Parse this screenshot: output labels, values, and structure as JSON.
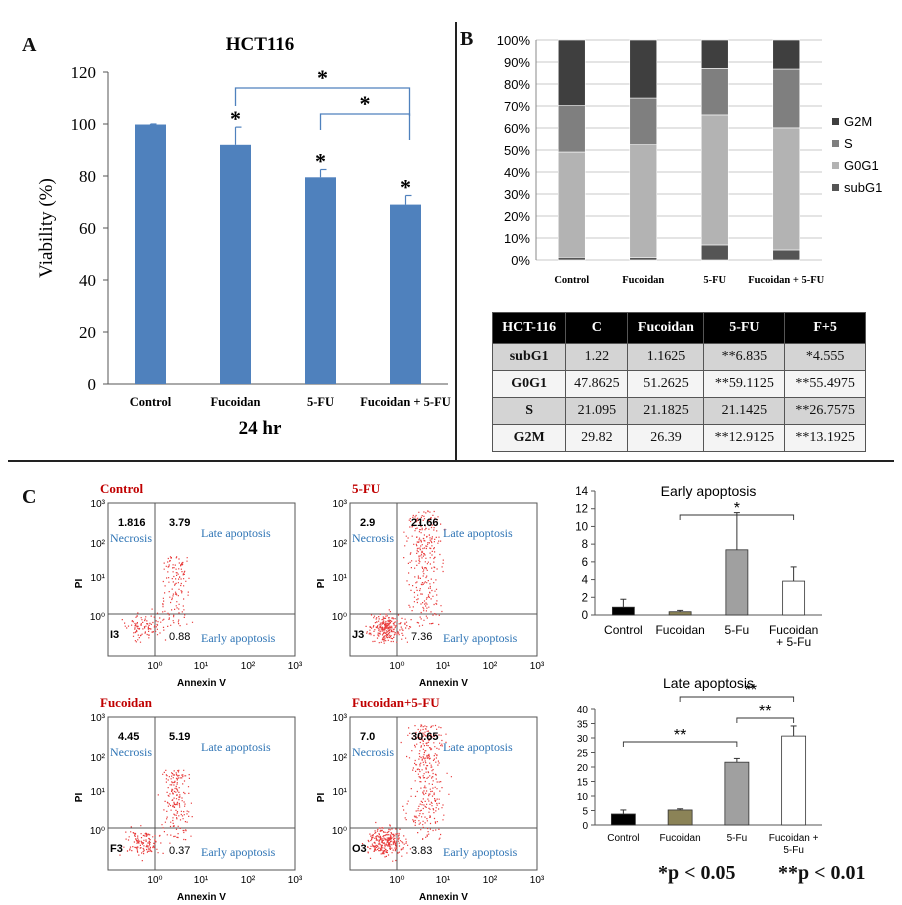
{
  "panel_labels": {
    "a": "A",
    "b": "B",
    "c": "C"
  },
  "significance_notes": {
    "p05": "*p < 0.05",
    "p01": "**p < 0.01"
  },
  "chart_data": [
    {
      "id": "A",
      "type": "bar",
      "title": "HCT116",
      "xlabel": "24 hr",
      "ylabel": "Viability (%)",
      "ylim": [
        0,
        120
      ],
      "yticks": [
        "0",
        "20",
        "40",
        "60",
        "80",
        "100",
        "120"
      ],
      "categories": [
        "Control",
        "Fucoidan",
        "5-FU",
        "Fucoidan + 5-FU"
      ],
      "values": [
        99.8,
        92,
        79.5,
        69
      ],
      "errors": [
        0.2,
        6.8,
        3,
        3.5
      ],
      "bar_color": "#4f81bd",
      "point_stars": [
        "",
        "*",
        "*",
        "*"
      ],
      "brackets": [
        {
          "from": 1,
          "to": 3,
          "label": "*"
        },
        {
          "from": 2,
          "to": 3,
          "label": "*"
        }
      ]
    },
    {
      "id": "B",
      "type": "bar",
      "subtype": "stacked-100",
      "ylim": [
        0,
        100
      ],
      "yticks": [
        "0%",
        "10%",
        "20%",
        "30%",
        "40%",
        "50%",
        "60%",
        "70%",
        "80%",
        "90%",
        "100%"
      ],
      "categories": [
        "Control",
        "Fucoidan",
        "5-FU",
        "Fucoidan + 5-FU"
      ],
      "series": [
        {
          "name": "subG1",
          "values": [
            1.22,
            1.1625,
            6.835,
            4.555
          ],
          "color": "#555555"
        },
        {
          "name": "G0G1",
          "values": [
            47.8625,
            51.2625,
            59.1125,
            55.4975
          ],
          "color": "#b3b3b3"
        },
        {
          "name": "S",
          "values": [
            21.095,
            21.1825,
            21.1425,
            26.7575
          ],
          "color": "#7f7f7f"
        },
        {
          "name": "G2M",
          "values": [
            29.82,
            26.39,
            12.9125,
            13.1925
          ],
          "color": "#3f3f3f"
        }
      ],
      "legend_order": [
        "G2M",
        "S",
        "G0G1",
        "subG1"
      ]
    },
    {
      "id": "B-table",
      "type": "table",
      "header": [
        "HCT-116",
        "C",
        "Fucoidan",
        "5-FU",
        "F+5"
      ],
      "rows": [
        [
          "subG1",
          "1.22",
          "1.1625",
          "**6.835",
          "*4.555"
        ],
        [
          "G0G1",
          "47.8625",
          "51.2625",
          "**59.1125",
          "**55.4975"
        ],
        [
          "S",
          "21.095",
          "21.1825",
          "21.1425",
          "**26.7575"
        ],
        [
          "G2M",
          "29.82",
          "26.39",
          "**12.9125",
          "**13.1925"
        ]
      ]
    },
    {
      "id": "C-flow",
      "type": "scatter",
      "xlabel": "Annexin V",
      "ylabel": "PI",
      "tick_labels": [
        "10⁰",
        "10¹",
        "10²",
        "10³"
      ],
      "quadrant_labels": {
        "necrosis": "Necrosis",
        "late": "Late apoptosis",
        "early": "Early apoptosis"
      },
      "plots": [
        {
          "title": "Control",
          "ul": "1.816",
          "ur": "3.79",
          "lr": "0.88",
          "ll": "I3",
          "density": 0.6
        },
        {
          "title": "5-FU",
          "ul": "2.9",
          "ur": "21.66",
          "lr": "7.36",
          "ll": "J3",
          "density": 1.4
        },
        {
          "title": "Fucoidan",
          "ul": "4.45",
          "ur": "5.19",
          "lr": "0.37",
          "ll": "F3",
          "density": 0.8
        },
        {
          "title": "Fucoidan+5-FU",
          "ul": "7.0",
          "ur": "30.65",
          "lr": "3.83",
          "ll": "O3",
          "density": 1.6
        }
      ]
    },
    {
      "id": "C-early",
      "type": "bar",
      "title": "Early apoptosis",
      "ylim": [
        0,
        14
      ],
      "yticks": [
        "0",
        "2",
        "4",
        "6",
        "8",
        "10",
        "12",
        "14"
      ],
      "categories": [
        "Control",
        "Fucoidan",
        "5-Fu",
        "Fucoidan\n+ 5-Fu"
      ],
      "values": [
        0.88,
        0.37,
        7.36,
        3.83
      ],
      "errors": [
        0.9,
        0.15,
        4.2,
        1.6
      ],
      "colors": [
        "#000000",
        "#8b8357",
        "#a0a0a0",
        "#ffffff"
      ],
      "brackets": [
        {
          "from": 1,
          "to": 3,
          "label": "*"
        }
      ]
    },
    {
      "id": "C-late",
      "type": "bar",
      "title": "Late apoptosis",
      "ylim": [
        0,
        40
      ],
      "yticks": [
        "0",
        "5",
        "10",
        "15",
        "20",
        "25",
        "30",
        "35",
        "40"
      ],
      "categories": [
        "Control",
        "Fucoidan",
        "5-Fu",
        "Fucoidan +\n5-Fu"
      ],
      "values": [
        3.79,
        5.19,
        21.66,
        30.65
      ],
      "errors": [
        1.4,
        0.4,
        1.3,
        3.5
      ],
      "colors": [
        "#000000",
        "#8b8357",
        "#a0a0a0",
        "#ffffff"
      ],
      "brackets": [
        {
          "from": 0,
          "to": 2,
          "label": "**"
        },
        {
          "from": 1,
          "to": 3,
          "label": "**"
        },
        {
          "from": 2,
          "to": 3,
          "label": "**"
        }
      ]
    }
  ]
}
